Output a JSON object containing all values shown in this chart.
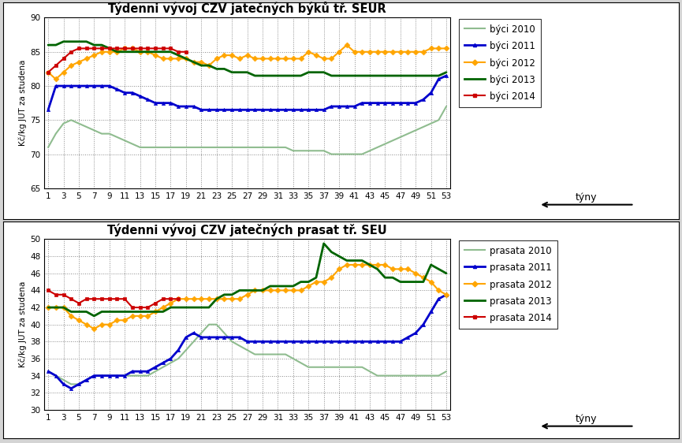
{
  "chart1": {
    "title": "Týdenni vývoj CZV jatečných býků tř. SEUR",
    "ylabel": "Kč/kg JUT za studena",
    "ylim": [
      65,
      90
    ],
    "yticks": [
      65,
      70,
      75,
      80,
      85,
      90
    ],
    "series": {
      "býci 2010": {
        "color": "#8fbc8f",
        "marker": null,
        "linewidth": 1.5,
        "data": [
          71,
          73,
          74.5,
          75,
          74.5,
          74,
          73.5,
          73,
          73,
          72.5,
          72,
          71.5,
          71,
          71,
          71,
          71,
          71,
          71,
          71,
          71,
          71,
          71,
          71,
          71,
          71,
          71,
          71,
          71,
          71,
          71,
          71,
          71,
          70.5,
          70.5,
          70.5,
          70.5,
          70.5,
          70,
          70,
          70,
          70,
          70,
          70.5,
          71,
          71.5,
          72,
          72.5,
          73,
          73.5,
          74,
          74.5,
          75,
          77
        ]
      },
      "býci 2011": {
        "color": "#0000cc",
        "marker": "^",
        "markersize": 3,
        "linewidth": 2,
        "data": [
          76.5,
          80,
          80,
          80,
          80,
          80,
          80,
          80,
          80,
          79.5,
          79,
          79,
          78.5,
          78,
          77.5,
          77.5,
          77.5,
          77,
          77,
          77,
          76.5,
          76.5,
          76.5,
          76.5,
          76.5,
          76.5,
          76.5,
          76.5,
          76.5,
          76.5,
          76.5,
          76.5,
          76.5,
          76.5,
          76.5,
          76.5,
          76.5,
          77,
          77,
          77,
          77,
          77.5,
          77.5,
          77.5,
          77.5,
          77.5,
          77.5,
          77.5,
          77.5,
          78,
          79,
          81,
          81.5
        ]
      },
      "býci 2012": {
        "color": "#ffa500",
        "marker": "D",
        "markersize": 3.5,
        "linewidth": 1.5,
        "data": [
          82,
          81,
          82,
          83,
          83.5,
          84,
          84.5,
          85,
          85,
          85,
          85.5,
          85.5,
          85,
          85,
          84.5,
          84,
          84,
          84,
          84,
          83.5,
          83.5,
          83,
          84,
          84.5,
          84.5,
          84,
          84.5,
          84,
          84,
          84,
          84,
          84,
          84,
          84,
          85,
          84.5,
          84,
          84,
          85,
          86,
          85,
          85,
          85,
          85,
          85,
          85,
          85,
          85,
          85,
          85,
          85.5,
          85.5,
          85.5
        ]
      },
      "býci 2013": {
        "color": "#006400",
        "marker": null,
        "linewidth": 2,
        "data": [
          86,
          86,
          86.5,
          86.5,
          86.5,
          86.5,
          86,
          86,
          85.5,
          85,
          85,
          85,
          85,
          85,
          85,
          85,
          85,
          84.5,
          84,
          83.5,
          83,
          83,
          82.5,
          82.5,
          82,
          82,
          82,
          81.5,
          81.5,
          81.5,
          81.5,
          81.5,
          81.5,
          81.5,
          82,
          82,
          82,
          81.5,
          81.5,
          81.5,
          81.5,
          81.5,
          81.5,
          81.5,
          81.5,
          81.5,
          81.5,
          81.5,
          81.5,
          81.5,
          81.5,
          81.5,
          82
        ]
      },
      "býci 2014": {
        "color": "#cc0000",
        "marker": "s",
        "markersize": 3.5,
        "linewidth": 1.5,
        "data": [
          82,
          83,
          84,
          85,
          85.5,
          85.5,
          85.5,
          85.5,
          85.5,
          85.5,
          85.5,
          85.5,
          85.5,
          85.5,
          85.5,
          85.5,
          85.5,
          85,
          85,
          null,
          null,
          null,
          null,
          null,
          null,
          null,
          null,
          null,
          null,
          null,
          null,
          null,
          null,
          null,
          null,
          null,
          null,
          null,
          null,
          null,
          null,
          null,
          null,
          null,
          null,
          null,
          null,
          null,
          null,
          null,
          null,
          null,
          null
        ]
      }
    }
  },
  "chart2": {
    "title": "Týdenni vývoj CZV jatečných prasat tř. SEU",
    "ylabel": "Kč/kg JUT za studena",
    "ylim": [
      30,
      50
    ],
    "yticks": [
      30,
      32,
      34,
      36,
      38,
      40,
      42,
      44,
      46,
      48,
      50
    ],
    "series": {
      "prasata 2010": {
        "color": "#8fbc8f",
        "marker": null,
        "linewidth": 1.5,
        "data": [
          34.5,
          34,
          33.5,
          33,
          33,
          33.5,
          34,
          34,
          34,
          34,
          34,
          34,
          34,
          34,
          34.5,
          35,
          35.5,
          36,
          37,
          38,
          39,
          40,
          40,
          39,
          38,
          37.5,
          37,
          36.5,
          36.5,
          36.5,
          36.5,
          36.5,
          36,
          35.5,
          35,
          35,
          35,
          35,
          35,
          35,
          35,
          35,
          34.5,
          34,
          34,
          34,
          34,
          34,
          34,
          34,
          34,
          34,
          34.5
        ]
      },
      "prasata 2011": {
        "color": "#0000cc",
        "marker": "^",
        "markersize": 3,
        "linewidth": 2,
        "data": [
          34.5,
          34,
          33,
          32.5,
          33,
          33.5,
          34,
          34,
          34,
          34,
          34,
          34.5,
          34.5,
          34.5,
          35,
          35.5,
          36,
          37,
          38.5,
          39,
          38.5,
          38.5,
          38.5,
          38.5,
          38.5,
          38.5,
          38,
          38,
          38,
          38,
          38,
          38,
          38,
          38,
          38,
          38,
          38,
          38,
          38,
          38,
          38,
          38,
          38,
          38,
          38,
          38,
          38,
          38.5,
          39,
          40,
          41.5,
          43,
          43.5
        ]
      },
      "prasata 2012": {
        "color": "#ffa500",
        "marker": "D",
        "markersize": 3.5,
        "linewidth": 1.5,
        "data": [
          42,
          42,
          42,
          41,
          40.5,
          40,
          39.5,
          40,
          40,
          40.5,
          40.5,
          41,
          41,
          41,
          41.5,
          42,
          42.5,
          43,
          43,
          43,
          43,
          43,
          43,
          43,
          43,
          43,
          43.5,
          44,
          44,
          44,
          44,
          44,
          44,
          44,
          44.5,
          45,
          45,
          45.5,
          46.5,
          47,
          47,
          47,
          47,
          47,
          47,
          46.5,
          46.5,
          46.5,
          46,
          45.5,
          45,
          44,
          43.5
        ]
      },
      "prasata 2013": {
        "color": "#006400",
        "marker": null,
        "linewidth": 2,
        "data": [
          42,
          42,
          42,
          41.5,
          41.5,
          41.5,
          41,
          41.5,
          41.5,
          41.5,
          41.5,
          41.5,
          41.5,
          41.5,
          41.5,
          41.5,
          42,
          42,
          42,
          42,
          42,
          42,
          43,
          43.5,
          43.5,
          44,
          44,
          44,
          44,
          44.5,
          44.5,
          44.5,
          44.5,
          45,
          45,
          45.5,
          49.5,
          48.5,
          48,
          47.5,
          47.5,
          47.5,
          47,
          46.5,
          45.5,
          45.5,
          45,
          45,
          45,
          45,
          47,
          46.5,
          46
        ]
      },
      "prasata 2014": {
        "color": "#cc0000",
        "marker": "s",
        "markersize": 3.5,
        "linewidth": 1.5,
        "data": [
          44,
          43.5,
          43.5,
          43,
          42.5,
          43,
          43,
          43,
          43,
          43,
          43,
          42,
          42,
          42,
          42.5,
          43,
          43,
          43,
          null,
          null,
          null,
          null,
          null,
          null,
          null,
          null,
          null,
          null,
          null,
          null,
          null,
          null,
          null,
          null,
          null,
          null,
          null,
          null,
          null,
          null,
          null,
          null,
          null,
          null,
          null,
          null,
          null,
          null,
          null,
          null,
          null,
          null,
          null
        ]
      }
    }
  },
  "weeks": [
    1,
    2,
    3,
    4,
    5,
    6,
    7,
    8,
    9,
    10,
    11,
    12,
    13,
    14,
    15,
    16,
    17,
    18,
    19,
    20,
    21,
    22,
    23,
    24,
    25,
    26,
    27,
    28,
    29,
    30,
    31,
    32,
    33,
    34,
    35,
    36,
    37,
    38,
    39,
    40,
    41,
    42,
    43,
    44,
    45,
    46,
    47,
    48,
    49,
    50,
    51,
    52,
    53
  ],
  "xticks": [
    1,
    3,
    5,
    7,
    9,
    11,
    13,
    15,
    17,
    19,
    21,
    23,
    25,
    27,
    29,
    31,
    33,
    35,
    37,
    39,
    41,
    43,
    45,
    47,
    49,
    51,
    53
  ],
  "background_color": "#ffffff",
  "grid_color": "#888888",
  "legend_order_chart1": [
    "býci 2010",
    "býci 2011",
    "býci 2012",
    "býci 2013",
    "býci 2014"
  ],
  "legend_order_chart2": [
    "prasata 2010",
    "prasata 2011",
    "prasata 2012",
    "prasata 2013",
    "prasata 2014"
  ],
  "tidny_label": "týny",
  "outer_bg": "#e8e8e8"
}
